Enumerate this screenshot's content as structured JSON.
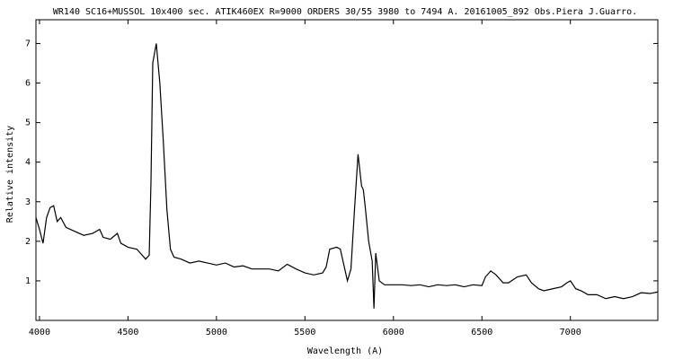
{
  "chart_data": {
    "type": "line",
    "title": "WR140  SC16+MUSSOL 10x400 sec. ATIK460EX  R=9000  ORDERS 30/55  3980 to 7494 A. 20161005_892 Obs.Piera  J.Guarro.",
    "x_label": "Wavelength (A)",
    "y_label": "Relative intensity",
    "color": "#000000",
    "x": [
      3980,
      4000,
      4020,
      4040,
      4060,
      4080,
      4100,
      4120,
      4150,
      4200,
      4250,
      4300,
      4340,
      4360,
      4400,
      4440,
      4460,
      4500,
      4550,
      4600,
      4620,
      4630,
      4640,
      4660,
      4680,
      4700,
      4720,
      4740,
      4760,
      4800,
      4850,
      4900,
      4950,
      5000,
      5050,
      5100,
      5150,
      5200,
      5250,
      5300,
      5350,
      5400,
      5450,
      5500,
      5550,
      5600,
      5620,
      5640,
      5680,
      5700,
      5720,
      5740,
      5760,
      5780,
      5800,
      5820,
      5830,
      5840,
      5860,
      5880,
      5890,
      5900,
      5920,
      5950,
      6000,
      6050,
      6100,
      6150,
      6200,
      6250,
      6300,
      6350,
      6400,
      6450,
      6500,
      6520,
      6550,
      6580,
      6620,
      6650,
      6700,
      6750,
      6780,
      6820,
      6850,
      6900,
      6950,
      6980,
      7000,
      7030,
      7060,
      7100,
      7150,
      7200,
      7250,
      7300,
      7350,
      7400,
      7450,
      7494
    ],
    "values": [
      2.6,
      2.3,
      1.95,
      2.6,
      2.85,
      2.9,
      2.5,
      2.6,
      2.35,
      2.25,
      2.15,
      2.2,
      2.3,
      2.1,
      2.05,
      2.2,
      1.95,
      1.85,
      1.8,
      1.55,
      1.65,
      3.5,
      6.5,
      7.0,
      6.0,
      4.5,
      2.8,
      1.8,
      1.6,
      1.55,
      1.45,
      1.5,
      1.45,
      1.4,
      1.45,
      1.35,
      1.38,
      1.3,
      1.3,
      1.3,
      1.25,
      1.42,
      1.3,
      1.2,
      1.15,
      1.2,
      1.35,
      1.8,
      1.85,
      1.8,
      1.4,
      1.0,
      1.3,
      2.8,
      4.2,
      3.4,
      3.3,
      2.9,
      2.0,
      1.5,
      0.3,
      1.7,
      1.0,
      0.9,
      0.9,
      0.9,
      0.88,
      0.9,
      0.85,
      0.9,
      0.88,
      0.9,
      0.85,
      0.9,
      0.88,
      1.1,
      1.25,
      1.15,
      0.95,
      0.95,
      1.1,
      1.15,
      0.95,
      0.8,
      0.75,
      0.8,
      0.85,
      0.95,
      1.0,
      0.8,
      0.75,
      0.65,
      0.65,
      0.55,
      0.6,
      0.55,
      0.6,
      0.7,
      0.68,
      0.72
    ],
    "xlim": [
      3980,
      7494
    ],
    "ylim": [
      0,
      7.6
    ],
    "xticks": [
      4000,
      4500,
      5000,
      5500,
      6000,
      6500,
      7000
    ],
    "yticks": [
      1,
      2,
      3,
      4,
      5,
      6,
      7
    ]
  }
}
